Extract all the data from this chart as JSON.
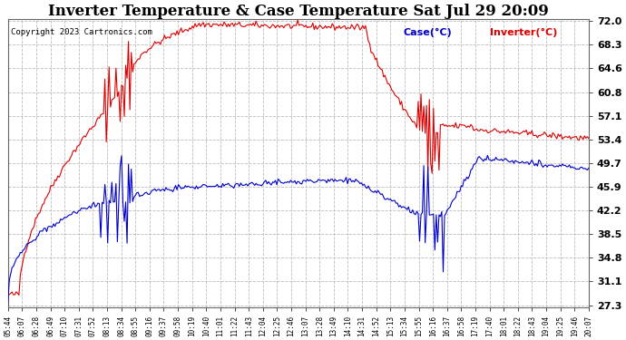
{
  "title": "Inverter Temperature & Case Temperature Sat Jul 29 20:09",
  "copyright": "Copyright 2023 Cartronics.com",
  "legend_case": "Case(°C)",
  "legend_inverter": "Inverter(°C)",
  "yticks": [
    27.3,
    31.1,
    34.8,
    38.5,
    42.2,
    45.9,
    49.7,
    53.4,
    57.1,
    60.8,
    64.6,
    68.3,
    72.0
  ],
  "ymin": 27.3,
  "ymax": 72.0,
  "background_color": "#ffffff",
  "plot_bg_color": "#ffffff",
  "grid_color": "#bbbbbb",
  "inverter_color": "#dd0000",
  "case_color": "#0000cc",
  "title_fontsize": 12,
  "xtick_labels": [
    "05:44",
    "06:07",
    "06:28",
    "06:49",
    "07:10",
    "07:31",
    "07:52",
    "08:13",
    "08:34",
    "08:55",
    "09:16",
    "09:37",
    "09:58",
    "10:19",
    "10:40",
    "11:01",
    "11:22",
    "11:43",
    "12:04",
    "12:25",
    "12:46",
    "13:07",
    "13:28",
    "13:49",
    "14:10",
    "14:31",
    "14:52",
    "15:13",
    "15:34",
    "15:55",
    "16:16",
    "16:37",
    "16:58",
    "17:19",
    "17:40",
    "18:01",
    "18:22",
    "18:43",
    "19:04",
    "19:25",
    "19:46",
    "20:07"
  ]
}
